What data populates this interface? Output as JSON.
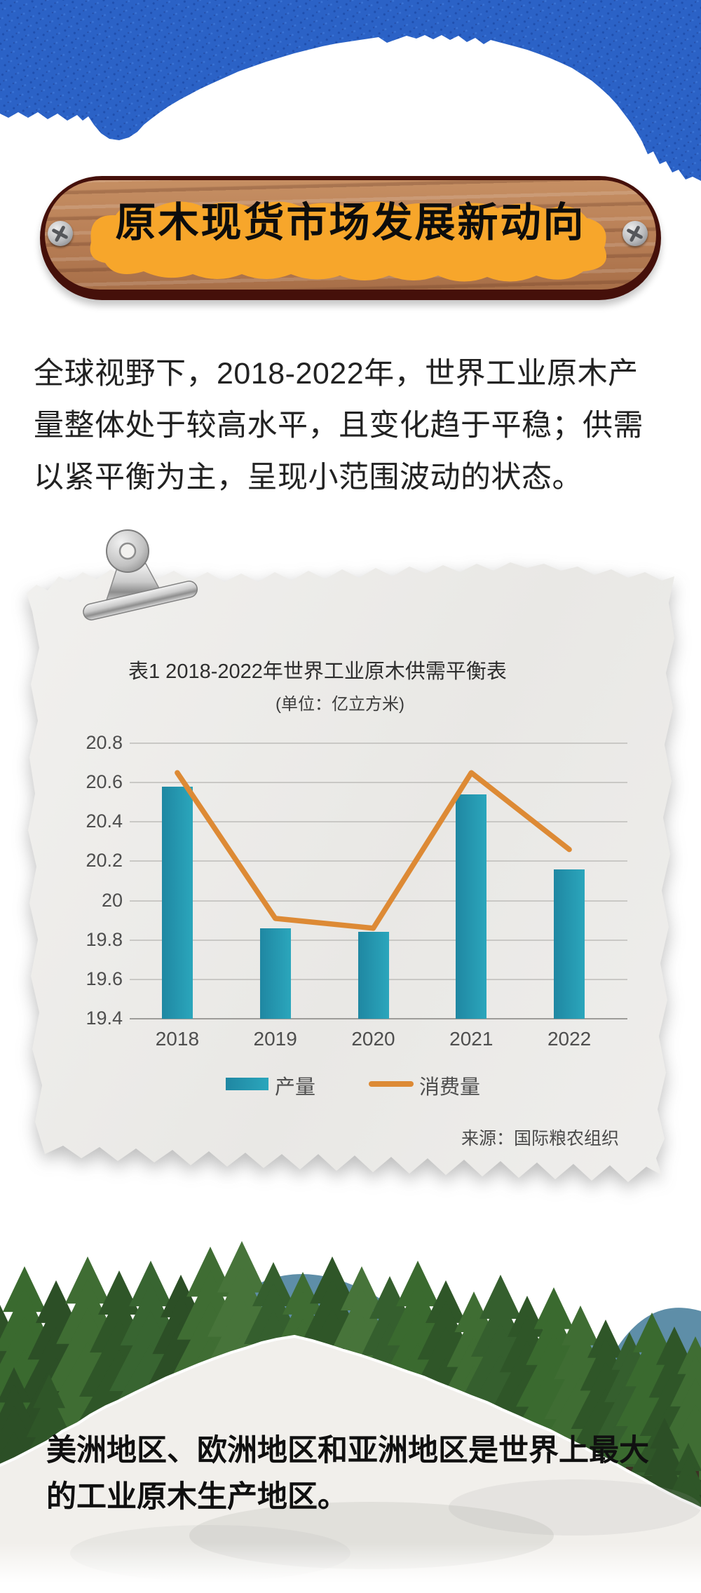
{
  "banner": {
    "title": "原木现货市场发展新动向"
  },
  "intro": {
    "text": "全球视野下，2018-2022年，世界工业原木产量整体处于较高水平，且变化趋于平稳；供需以紧平衡为主，呈现小范围波动的状态。"
  },
  "chart_data": {
    "type": "bar+line",
    "title": "表1 2018-2022年世界工业原木供需平衡表",
    "unit_label": "(单位：亿立方米)",
    "categories": [
      "2018",
      "2019",
      "2020",
      "2021",
      "2022"
    ],
    "series": [
      {
        "name": "产量",
        "type": "bar",
        "color": "#1f87a2",
        "color_light": "#2ba6bc",
        "values": [
          20.58,
          19.86,
          19.84,
          20.54,
          20.16
        ]
      },
      {
        "name": "消费量",
        "type": "line",
        "color": "#dd8a35",
        "values": [
          20.65,
          19.91,
          19.86,
          20.65,
          20.26
        ]
      }
    ],
    "ylim": [
      19.4,
      20.8
    ],
    "ytick_step": 0.2,
    "yticks": [
      "20.8",
      "20.6",
      "20.4",
      "20.2",
      "20",
      "19.8",
      "19.6",
      "19.4"
    ],
    "grid": true,
    "legend_position": "bottom",
    "source": "来源：国际粮农组织"
  },
  "footer": {
    "text": "美洲地区、欧洲地区和亚洲地区是世界上最大的工业原木生产地区。"
  },
  "colors": {
    "top_blue": "#2b62c6",
    "banner_orange": "#f7a62b",
    "wood_brown": "#b98057",
    "bar_teal": "#1f87a2",
    "line_orange": "#dd8a35",
    "paper_grey": "#eeedeb"
  }
}
